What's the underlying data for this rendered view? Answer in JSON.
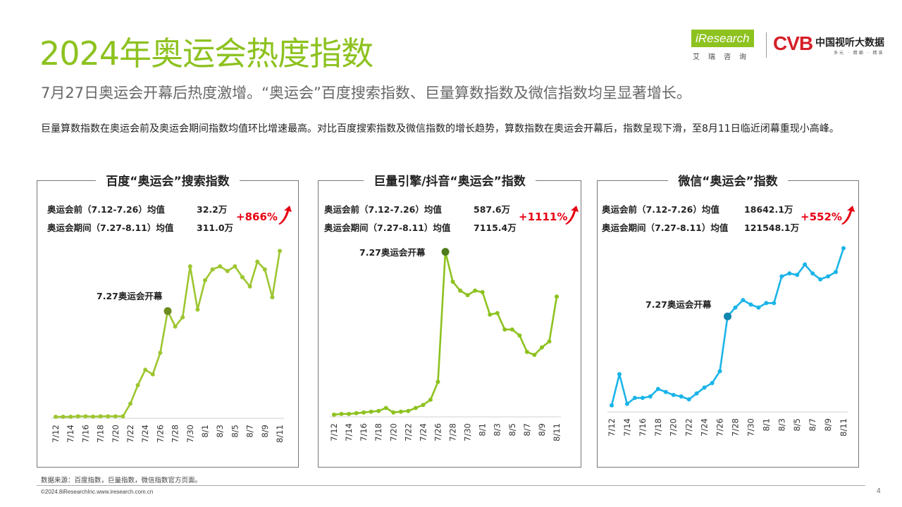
{
  "header": {
    "title": "2024年奥运会热度指数",
    "subtitle": "7月27日奥运会开幕后热度激增。“奥运会”百度搜索指数、巨量算数指数及微信指数均呈显著增长。",
    "description": "巨量算数指数在奥运会前及奥运会期间指数均值环比增速最高。对比百度搜索指数及微信指数的增长趋势，算数指数在奥运会开幕后，指数呈现下滑，至8月11日临近闭幕重现小高峰。"
  },
  "logos": {
    "iresearch_text": "iResearch",
    "iresearch_cn": "艾瑞咨询",
    "cvb_mark": "CVB",
    "cvb_name": "中国视听大数据",
    "cvb_slogan": "多元 · 精细 · 精准"
  },
  "colors": {
    "accent": "#8dc21f",
    "growth": "#e60012"
  },
  "chart_data": [
    {
      "type": "line",
      "title": "百度“奥运会”搜索指数",
      "stats": [
        {
          "label": "奥运会前（7.12-7.26）均值",
          "value": "32.2万"
        },
        {
          "label": "奥运会期间（7.27-8.11）均值",
          "value": "311.0万"
        }
      ],
      "growth": "+866%",
      "annotation": "7.27奥运会开幕",
      "highlight_index": 15,
      "color": "#9dc630",
      "marker_color": "#6c8b1e",
      "ylim": [
        0,
        11.5
      ],
      "x_tick_labels": [
        "7/12",
        "7/14",
        "7/16",
        "7/18",
        "7/20",
        "7/22",
        "7/24",
        "7/26",
        "7/28",
        "7/30",
        "8/1",
        "8/3",
        "8/5",
        "8/7",
        "8/9",
        "8/11"
      ],
      "x": [
        "7/12",
        "7/13",
        "7/14",
        "7/15",
        "7/16",
        "7/17",
        "7/18",
        "7/19",
        "7/20",
        "7/21",
        "7/22",
        "7/23",
        "7/24",
        "7/25",
        "7/26",
        "7/27",
        "7/28",
        "7/29",
        "7/30",
        "7/31",
        "8/1",
        "8/2",
        "8/3",
        "8/4",
        "8/5",
        "8/6",
        "8/7",
        "8/8",
        "8/9",
        "8/10",
        "8/11"
      ],
      "values": [
        0.05,
        0.05,
        0.05,
        0.08,
        0.08,
        0.06,
        0.08,
        0.08,
        0.08,
        0.08,
        0.9,
        2.1,
        3.1,
        2.8,
        4.2,
        6.9,
        5.9,
        6.5,
        9.8,
        7.0,
        8.9,
        9.6,
        9.8,
        9.5,
        9.8,
        9.1,
        8.5,
        10.1,
        9.6,
        7.8,
        10.8
      ]
    },
    {
      "type": "line",
      "title": "巨量引擎/抖音“奥运会”指数",
      "stats": [
        {
          "label": "奥运会前（7.12-7.26）均值",
          "value": "587.6万"
        },
        {
          "label": "奥运会期间（7.27-8.11）均值",
          "value": "7115.4万"
        }
      ],
      "growth": "+1111%",
      "annotation": "7.27奥运会开幕",
      "highlight_index": 15,
      "color": "#8dc21f",
      "marker_color": "#4e7c1c",
      "ylim": [
        0,
        11.5
      ],
      "x_tick_labels": [
        "7/12",
        "7/14",
        "7/16",
        "7/18",
        "7/20",
        "7/22",
        "7/24",
        "7/26",
        "7/28",
        "7/30",
        "8/1",
        "8/3",
        "8/5",
        "8/7",
        "8/9",
        "8/11"
      ],
      "x": [
        "7/12",
        "7/13",
        "7/14",
        "7/15",
        "7/16",
        "7/17",
        "7/18",
        "7/19",
        "7/20",
        "7/21",
        "7/22",
        "7/23",
        "7/24",
        "7/25",
        "7/26",
        "7/27",
        "7/28",
        "7/29",
        "7/30",
        "7/31",
        "8/1",
        "8/2",
        "8/3",
        "8/4",
        "8/5",
        "8/6",
        "8/7",
        "8/8",
        "8/9",
        "8/10",
        "8/11"
      ],
      "values": [
        0.1,
        0.15,
        0.15,
        0.2,
        0.25,
        0.3,
        0.35,
        0.55,
        0.25,
        0.3,
        0.35,
        0.55,
        0.75,
        1.1,
        2.3,
        11.0,
        9.0,
        8.4,
        8.1,
        8.4,
        8.3,
        6.8,
        6.9,
        5.8,
        5.8,
        5.4,
        4.3,
        4.1,
        4.6,
        5.0,
        8.0
      ]
    },
    {
      "type": "line",
      "title": "微信“奥运会”指数",
      "stats": [
        {
          "label": "奥运会前（7.12-7.26）均值",
          "value": "18642.1万"
        },
        {
          "label": "奥运会期间（7.27-8.11）均值",
          "value": "121548.1万"
        }
      ],
      "growth": "+552%",
      "annotation": "7.27奥运会开幕",
      "highlight_index": 15,
      "color": "#1ab4e8",
      "marker_color": "#1287b0",
      "ylim": [
        0,
        11.5
      ],
      "x_tick_labels": [
        "7/12",
        "7/14",
        "7/16",
        "7/18",
        "7/20",
        "7/22",
        "7/24",
        "7/26",
        "7/28",
        "7/30",
        "8/1",
        "8/3",
        "8/5",
        "8/7",
        "8/9",
        "8/11"
      ],
      "x": [
        "7/12",
        "7/13",
        "7/14",
        "7/15",
        "7/16",
        "7/17",
        "7/18",
        "7/19",
        "7/20",
        "7/21",
        "7/22",
        "7/23",
        "7/24",
        "7/25",
        "7/26",
        "7/27",
        "7/28",
        "7/29",
        "7/30",
        "7/31",
        "8/1",
        "8/2",
        "8/3",
        "8/4",
        "8/5",
        "8/6",
        "8/7",
        "8/8",
        "8/9",
        "8/10",
        "8/11"
      ],
      "values": [
        0.4,
        2.5,
        0.5,
        0.9,
        0.9,
        1.0,
        1.5,
        1.3,
        1.1,
        1.0,
        0.8,
        1.2,
        1.6,
        1.9,
        2.7,
        6.4,
        7.0,
        7.5,
        7.2,
        7.0,
        7.3,
        7.3,
        9.1,
        9.3,
        9.2,
        9.9,
        9.3,
        8.9,
        9.1,
        9.4,
        11.0
      ]
    }
  ],
  "footer": {
    "source": "数据来源：百度指数，巨量指数，微信指数官方页面。",
    "copyright": "©2024.8iResearchInc.www.iresearch.com.cn",
    "page_number": "4"
  }
}
